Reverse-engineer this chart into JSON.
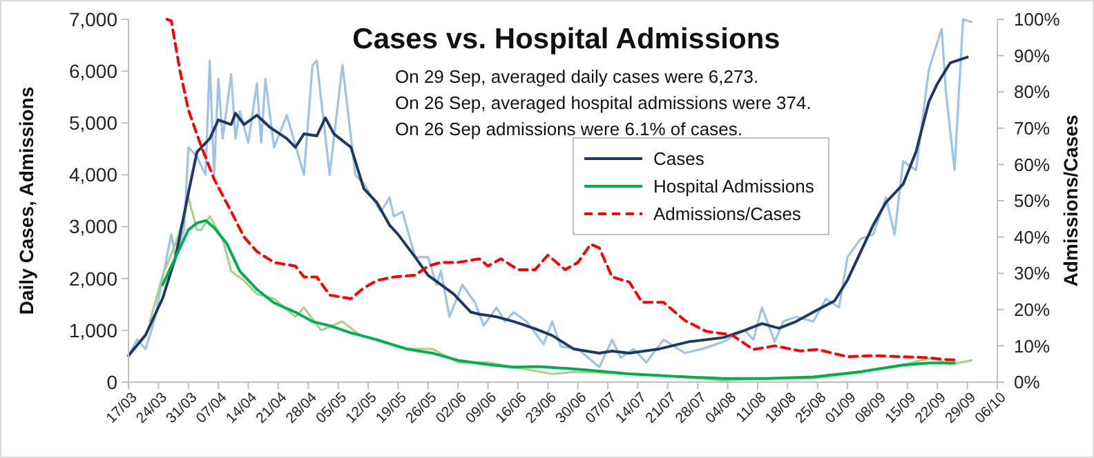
{
  "chart_data": {
    "type": "line",
    "title": "Cases vs. Hospital Admissions",
    "ylabel": "Daily Cases, Admissions",
    "y2label": "Admissions/Cases",
    "annotations": [
      "On 29 Sep, averaged daily cases were 6,273.",
      "On 26 Sep, averaged hospital admissions were 374.",
      "On 26 Sep admissions were 6.1% of cases."
    ],
    "xlim": [
      "--03-17",
      "--10-06"
    ],
    "xticks": [
      {
        "value": "--03-17",
        "label": "17/03"
      },
      {
        "value": "--03-24",
        "label": "24/03"
      },
      {
        "value": "--03-31",
        "label": "31/03"
      },
      {
        "value": "--04-07",
        "label": "07/04"
      },
      {
        "value": "--04-14",
        "label": "14/04"
      },
      {
        "value": "--04-21",
        "label": "21/04"
      },
      {
        "value": "--04-28",
        "label": "28/04"
      },
      {
        "value": "--05-05",
        "label": "05/05"
      },
      {
        "value": "--05-12",
        "label": "12/05"
      },
      {
        "value": "--05-19",
        "label": "19/05"
      },
      {
        "value": "--05-26",
        "label": "26/05"
      },
      {
        "value": "--06-02",
        "label": "02/06"
      },
      {
        "value": "--06-09",
        "label": "09/06"
      },
      {
        "value": "--06-16",
        "label": "16/06"
      },
      {
        "value": "--06-23",
        "label": "23/06"
      },
      {
        "value": "--06-30",
        "label": "30/06"
      },
      {
        "value": "--07-07",
        "label": "07/07"
      },
      {
        "value": "--07-14",
        "label": "14/07"
      },
      {
        "value": "--07-21",
        "label": "21/07"
      },
      {
        "value": "--07-28",
        "label": "28/07"
      },
      {
        "value": "--08-04",
        "label": "04/08"
      },
      {
        "value": "--08-11",
        "label": "11/08"
      },
      {
        "value": "--08-18",
        "label": "18/08"
      },
      {
        "value": "--08-25",
        "label": "25/08"
      },
      {
        "value": "--09-01",
        "label": "01/09"
      },
      {
        "value": "--09-08",
        "label": "08/09"
      },
      {
        "value": "--09-15",
        "label": "15/09"
      },
      {
        "value": "--09-22",
        "label": "22/09"
      },
      {
        "value": "--09-29",
        "label": "29/09"
      },
      {
        "value": "--10-06",
        "label": "06/10"
      }
    ],
    "ylim": [
      0,
      7000
    ],
    "yticks": [
      {
        "value": 0,
        "label": "0"
      },
      {
        "value": 1000,
        "label": "1,000"
      },
      {
        "value": 2000,
        "label": "2,000"
      },
      {
        "value": 3000,
        "label": "3,000"
      },
      {
        "value": 4000,
        "label": "4,000"
      },
      {
        "value": 5000,
        "label": "5,000"
      },
      {
        "value": 6000,
        "label": "6,000"
      },
      {
        "value": 7000,
        "label": "7,000"
      }
    ],
    "y2lim": [
      0,
      100
    ],
    "y2ticks": [
      {
        "value": 0,
        "label": "0%"
      },
      {
        "value": 10,
        "label": "10%"
      },
      {
        "value": 20,
        "label": "20%"
      },
      {
        "value": 30,
        "label": "30%"
      },
      {
        "value": 40,
        "label": "40%"
      },
      {
        "value": 50,
        "label": "50%"
      },
      {
        "value": 60,
        "label": "60%"
      },
      {
        "value": 70,
        "label": "70%"
      },
      {
        "value": 80,
        "label": "80%"
      },
      {
        "value": 90,
        "label": "90%"
      },
      {
        "value": 100,
        "label": "100%"
      }
    ],
    "legend": "top",
    "marker": "none",
    "line_style": "solid",
    "series": [
      {
        "color": "#9dc3e6",
        "x": [
          "--03-17",
          "--03-19",
          "--03-21",
          "--03-23",
          "--03-27",
          "--03-28",
          "--03-30",
          "--03-31",
          "--04-02",
          "--04-04",
          "--04-05",
          "--04-06",
          "--04-07",
          "--04-08",
          "--04-10",
          "--04-11",
          "--04-12",
          "--04-14",
          "--04-16",
          "--04-17",
          "--04-18",
          "--04-20",
          "--04-23",
          "--04-27",
          "--04-29",
          "--04-30",
          "--05-03",
          "--05-06",
          "--05-09",
          "--05-11",
          "--05-15",
          "--05-17",
          "--05-18",
          "--05-20",
          "--05-23",
          "--05-26",
          "--05-28",
          "--05-29",
          "--05-31",
          "--06-03",
          "--06-06",
          "--06-08",
          "--06-11",
          "--06-13",
          "--06-15",
          "--06-18",
          "--06-22",
          "--06-24",
          "--06-26",
          "--06-30",
          "--07-05",
          "--07-08",
          "--07-10",
          "--07-13",
          "--07-16",
          "--07-20",
          "--07-25",
          "--07-29",
          "--08-03",
          "--08-08",
          "--08-10",
          "--08-12",
          "--08-15",
          "--08-17",
          "--08-20",
          "--08-24",
          "--08-27",
          "--08-30",
          "--09-01",
          "--09-04",
          "--09-07",
          "--09-10",
          "--09-12",
          "--09-14",
          "--09-17",
          "--09-20",
          "--09-23",
          "--09-24",
          "--09-26",
          "--09-28",
          "--09-30"
        ],
        "values": [
          510,
          820,
          640,
          1170,
          2850,
          2410,
          2940,
          4530,
          4350,
          4000,
          6200,
          4000,
          5850,
          4700,
          5940,
          4700,
          5230,
          4620,
          5760,
          4620,
          5850,
          4530,
          5150,
          4000,
          6120,
          6200,
          4000,
          6120,
          4000,
          3820,
          3290,
          3560,
          3200,
          3290,
          2410,
          2410,
          1880,
          2150,
          1260,
          1880,
          1530,
          1090,
          1440,
          1170,
          1350,
          1170,
          730,
          1170,
          690,
          640,
          290,
          820,
          470,
          640,
          380,
          820,
          560,
          640,
          780,
          1000,
          820,
          1440,
          780,
          1170,
          1260,
          1170,
          1610,
          1440,
          2410,
          2760,
          2850,
          3560,
          2850,
          4260,
          4090,
          6030,
          6820,
          5590,
          4090,
          7000,
          6950
        ]
      },
      {
        "color": "#a9d18e",
        "x": [
          "--03-22",
          "--03-25",
          "--03-28",
          "--03-30",
          "--03-31",
          "--04-02",
          "--04-03",
          "--04-05",
          "--04-08",
          "--04-10",
          "--04-13",
          "--04-16",
          "--04-20",
          "--04-25",
          "--04-27",
          "--05-01",
          "--05-06",
          "--05-10",
          "--05-15",
          "--05-21",
          "--05-27",
          "--06-02",
          "--06-09",
          "--06-15",
          "--06-24",
          "--06-30",
          "--07-12",
          "--07-23",
          "--08-03",
          "--08-13",
          "--08-24",
          "--09-04",
          "--09-14",
          "--09-21",
          "--09-25",
          "--09-30"
        ],
        "values": [
          1170,
          2060,
          2670,
          3200,
          3560,
          2940,
          2940,
          3200,
          2760,
          2140,
          1960,
          1700,
          1610,
          1260,
          1440,
          1000,
          1170,
          910,
          780,
          640,
          640,
          380,
          380,
          290,
          160,
          200,
          160,
          110,
          30,
          70,
          70,
          190,
          340,
          470,
          340,
          420
        ]
      },
      {
        "name": "Cases",
        "color": "#1f3864",
        "x": [
          "--03-17",
          "--03-21",
          "--03-25",
          "--03-28",
          "--03-31",
          "--04-02",
          "--04-05",
          "--04-07",
          "--04-10",
          "--04-11",
          "--04-13",
          "--04-16",
          "--04-19",
          "--04-23",
          "--04-25",
          "--04-27",
          "--04-30",
          "--05-02",
          "--05-04",
          "--05-08",
          "--05-11",
          "--05-14",
          "--05-17",
          "--05-19",
          "--05-23",
          "--05-26",
          "--05-29",
          "--06-01",
          "--06-05",
          "--06-07",
          "--06-11",
          "--06-15",
          "--06-20",
          "--06-24",
          "--06-29",
          "--07-05",
          "--07-08",
          "--07-12",
          "--07-19",
          "--07-26",
          "--08-03",
          "--08-08",
          "--08-12",
          "--08-16",
          "--08-20",
          "--08-24",
          "--08-29",
          "--09-01",
          "--09-04",
          "--09-07",
          "--09-10",
          "--09-14",
          "--09-17",
          "--09-20",
          "--09-22",
          "--09-25",
          "--09-29"
        ],
        "values": [
          510,
          910,
          1620,
          2410,
          3650,
          4440,
          4700,
          5060,
          4970,
          5190,
          4970,
          5150,
          4920,
          4700,
          4530,
          4790,
          4750,
          5100,
          4790,
          4530,
          3730,
          3470,
          3030,
          2850,
          2410,
          2060,
          1880,
          1700,
          1350,
          1310,
          1260,
          1170,
          1030,
          900,
          640,
          560,
          600,
          560,
          640,
          780,
          860,
          1000,
          1130,
          1040,
          1170,
          1350,
          1570,
          1970,
          2500,
          3030,
          3470,
          3820,
          4440,
          5410,
          5760,
          6160,
          6270
        ]
      },
      {
        "name": "Hospital Admissions",
        "color": "#00b050",
        "x": [
          "--03-25",
          "--03-28",
          "--03-31",
          "--04-02",
          "--04-04",
          "--04-06",
          "--04-09",
          "--04-12",
          "--04-16",
          "--04-20",
          "--04-25",
          "--04-29",
          "--05-03",
          "--05-08",
          "--05-14",
          "--05-21",
          "--05-27",
          "--06-02",
          "--06-09",
          "--06-15",
          "--06-21",
          "--06-30",
          "--07-12",
          "--07-23",
          "--08-03",
          "--08-13",
          "--08-24",
          "--09-04",
          "--09-14",
          "--09-20",
          "--09-26"
        ],
        "values": [
          1880,
          2410,
          2940,
          3070,
          3120,
          2980,
          2670,
          2140,
          1790,
          1530,
          1350,
          1170,
          1090,
          950,
          820,
          640,
          560,
          420,
          340,
          290,
          300,
          250,
          160,
          110,
          70,
          70,
          100,
          200,
          330,
          370,
          370
        ]
      },
      {
        "name": "Admissions/Cases",
        "color": "#ff0000",
        "axis": "y2",
        "line_style": "dashed",
        "x": [
          "--03-26",
          "--03-27",
          "--03-29",
          "--03-31",
          "--04-03",
          "--04-06",
          "--04-10",
          "--04-13",
          "--04-16",
          "--04-20",
          "--04-25",
          "--04-27",
          "--04-30",
          "--05-03",
          "--05-08",
          "--05-11",
          "--05-14",
          "--05-18",
          "--05-23",
          "--05-26",
          "--05-29",
          "--06-02",
          "--06-07",
          "--06-09",
          "--06-12",
          "--06-16",
          "--06-20",
          "--06-23",
          "--06-25",
          "--06-27",
          "--06-30",
          "--07-03",
          "--07-05",
          "--07-08",
          "--07-12",
          "--07-15",
          "--07-20",
          "--07-25",
          "--07-30",
          "--08-05",
          "--08-10",
          "--08-15",
          "--08-21",
          "--08-25",
          "--09-01",
          "--09-07",
          "--09-14",
          "--09-20",
          "--09-23",
          "--09-26"
        ],
        "values": [
          100,
          99.6,
          86,
          75,
          65,
          56,
          47,
          40,
          36,
          33,
          32,
          29,
          29,
          24,
          23,
          26,
          28,
          29,
          29.5,
          32,
          33,
          33,
          34,
          32,
          34,
          31,
          31,
          35,
          33,
          31,
          33,
          38,
          37,
          29,
          27.6,
          22,
          22,
          17,
          14,
          13,
          9,
          10,
          8.6,
          9,
          7,
          7.3,
          7,
          6.7,
          6.3,
          6.1
        ]
      }
    ]
  }
}
